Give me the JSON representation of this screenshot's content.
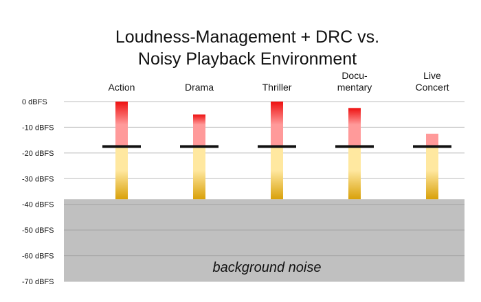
{
  "chart_data": {
    "type": "bar",
    "title": "Loudness-Management + DRC vs. Noisy Playback Environment",
    "title_lines": [
      "Loudness-Management + DRC vs.",
      "Noisy Playback Environment"
    ],
    "categories": [
      "Action",
      "Drama",
      "Thriller",
      "Documentary",
      "Live Concert"
    ],
    "category_label_lines": [
      [
        "Action"
      ],
      [
        "Drama"
      ],
      [
        "Thriller"
      ],
      [
        "Docu-",
        "mentary"
      ],
      [
        "Live",
        "Concert"
      ]
    ],
    "y_unit": "dBFS",
    "ylim": [
      -70,
      0
    ],
    "y_ticks": [
      0,
      -10,
      -20,
      -30,
      -40,
      -50,
      -60,
      -70
    ],
    "y_tick_labels": [
      "0 dBFS",
      "-10 dBFS",
      "-20 dBFS",
      "-30 dBFS",
      "-40 dBFS",
      "-50 dBFS",
      "-60 dBFS",
      "-70 dBFS"
    ],
    "grid": true,
    "series": [
      {
        "peak": 0,
        "reference": -17.5,
        "bottom": -38
      },
      {
        "peak": -5,
        "reference": -17.5,
        "bottom": -38
      },
      {
        "peak": 0,
        "reference": -17.5,
        "bottom": -38
      },
      {
        "peak": -2.5,
        "reference": -17.5,
        "bottom": -38
      },
      {
        "peak": -12.5,
        "reference": -17.5,
        "bottom": -38
      }
    ],
    "noise_floor": {
      "top": -38,
      "bottom": -70,
      "label": "background noise"
    },
    "colors": {
      "peak_red": "#ee1111",
      "upper_pink": "#ff9a9a",
      "lower_yellow": "#ffe8a0",
      "lower_gold": "#d9a10a",
      "reference_line": "#111111",
      "noise": "#c0c0c0",
      "grid": "#bdbdbd"
    }
  }
}
